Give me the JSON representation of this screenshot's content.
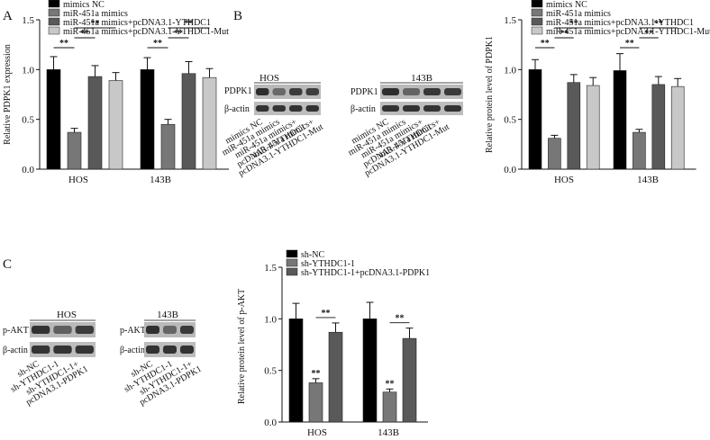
{
  "panels": {
    "A": "A",
    "B": "B",
    "C": "C"
  },
  "colors": {
    "s1": "#000000",
    "s2": "#777777",
    "s3": "#595959",
    "s4": "#c8c8c8"
  },
  "blots": {
    "B": {
      "target": "PDPK1",
      "loading": "β-actin",
      "groups": [
        "HOS",
        "143B"
      ],
      "lanes": [
        "mimics NC",
        "miR-451a mimics",
        "miR-451a mimics+ pcDNA3.1-YTHDC1",
        "miR-451a mimics+ pcDNA3.1-YTHDC1-Mut"
      ]
    },
    "C": {
      "target": "p-AKT",
      "loading": "β-actin",
      "groups": [
        "HOS",
        "143B"
      ],
      "lanes": [
        "sh-NC",
        "sh-YTHDC1-1",
        "sh-YTHDC1-1+ pcDNA3.1-PDPK1"
      ]
    }
  },
  "chart_data": [
    {
      "id": "A",
      "type": "bar",
      "ylabel": "Relative PDPK1 expression",
      "ylim": [
        0,
        1.5
      ],
      "yticks": [
        "0.0",
        "0.5",
        "1.0",
        "1.5"
      ],
      "categories": [
        "HOS",
        "143B"
      ],
      "series": [
        {
          "name": "mimics NC",
          "values": [
            1.0,
            1.0
          ],
          "errors": [
            0.13,
            0.12
          ]
        },
        {
          "name": "miR-451a mimics",
          "values": [
            0.37,
            0.45
          ],
          "errors": [
            0.04,
            0.05
          ]
        },
        {
          "name": "miR-451a mimics+pcDNA3.1-YTHDC1",
          "values": [
            0.93,
            0.96
          ],
          "errors": [
            0.11,
            0.12
          ]
        },
        {
          "name": "miR-451a mimics+pcDNA3.1-YTHDC1-Mut",
          "values": [
            0.89,
            0.92
          ],
          "errors": [
            0.08,
            0.09
          ]
        }
      ],
      "significance": [
        {
          "group": 0,
          "from": 0,
          "to": 1,
          "level": 1,
          "text": "**"
        },
        {
          "group": 0,
          "from": 1,
          "to": 2,
          "level": 2,
          "text": "**"
        },
        {
          "group": 0,
          "from": 1,
          "to": 3,
          "level": 3,
          "text": "**"
        },
        {
          "group": 1,
          "from": 0,
          "to": 1,
          "level": 1,
          "text": "**"
        },
        {
          "group": 1,
          "from": 1,
          "to": 2,
          "level": 2,
          "text": "**"
        },
        {
          "group": 1,
          "from": 1,
          "to": 3,
          "level": 3,
          "text": "**"
        }
      ]
    },
    {
      "id": "B",
      "type": "bar",
      "ylabel": "Relative protein level of PDPK1",
      "ylim": [
        0,
        1.5
      ],
      "yticks": [
        "0.0",
        "0.5",
        "1.0",
        "1.5"
      ],
      "categories": [
        "HOS",
        "143B"
      ],
      "series": [
        {
          "name": "mimics NC",
          "values": [
            1.0,
            0.99
          ],
          "errors": [
            0.1,
            0.17
          ]
        },
        {
          "name": "miR-451a mimics",
          "values": [
            0.31,
            0.37
          ],
          "errors": [
            0.03,
            0.03
          ]
        },
        {
          "name": "miR-451a mimics+pcDNA3.1-YTHDC1",
          "values": [
            0.87,
            0.85
          ],
          "errors": [
            0.08,
            0.08
          ]
        },
        {
          "name": "miR-451a mimics+pcDNA3.1-YTHDC1-Mut",
          "values": [
            0.84,
            0.83
          ],
          "errors": [
            0.08,
            0.08
          ]
        }
      ],
      "significance": [
        {
          "group": 0,
          "from": 0,
          "to": 1,
          "level": 1,
          "text": "**"
        },
        {
          "group": 0,
          "from": 1,
          "to": 2,
          "level": 2,
          "text": "**"
        },
        {
          "group": 0,
          "from": 1,
          "to": 3,
          "level": 3,
          "text": "**"
        },
        {
          "group": 1,
          "from": 0,
          "to": 1,
          "level": 1,
          "text": "**"
        },
        {
          "group": 1,
          "from": 1,
          "to": 2,
          "level": 2,
          "text": "**"
        },
        {
          "group": 1,
          "from": 1,
          "to": 3,
          "level": 3,
          "text": "**"
        }
      ]
    },
    {
      "id": "C",
      "type": "bar",
      "ylabel": "Relative protein level of p-AKT",
      "ylim": [
        0,
        1.5
      ],
      "yticks": [
        "0.0",
        "0.5",
        "1.0",
        "1.5"
      ],
      "categories": [
        "HOS",
        "143B"
      ],
      "series": [
        {
          "name": "sh-NC",
          "values": [
            1.0,
            1.0
          ],
          "errors": [
            0.15,
            0.16
          ]
        },
        {
          "name": "sh-YTHDC1-1",
          "values": [
            0.38,
            0.29
          ],
          "errors": [
            0.04,
            0.03
          ]
        },
        {
          "name": "sh-YTHDC1-1+pcDNA3.1-PDPK1",
          "values": [
            0.87,
            0.81
          ],
          "errors": [
            0.09,
            0.1
          ]
        }
      ],
      "bar_marks": [
        {
          "group": 0,
          "series": 1,
          "text": "**"
        },
        {
          "group": 1,
          "series": 1,
          "text": "**"
        }
      ],
      "significance": [
        {
          "group": 0,
          "from": 1,
          "to": 2,
          "level": 1,
          "text": "**"
        },
        {
          "group": 1,
          "from": 1,
          "to": 2,
          "level": 1,
          "text": "**"
        }
      ]
    }
  ]
}
